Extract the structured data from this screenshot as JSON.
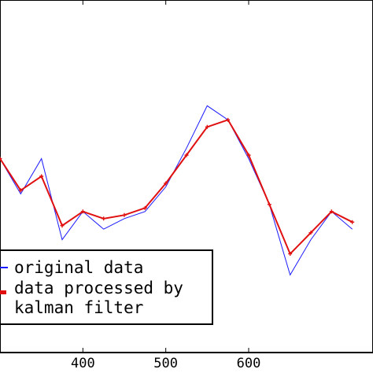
{
  "chart_data": {
    "type": "line",
    "title": "",
    "xlabel": "",
    "ylabel": "",
    "xlim": [
      300,
      750
    ],
    "x_ticks": [
      400,
      500,
      600
    ],
    "grid": false,
    "legend_position": "lower-left",
    "series": [
      {
        "name": "original data",
        "color": "#1a1aff",
        "style": "line",
        "x": [
          300,
          325,
          350,
          375,
          400,
          425,
          450,
          475,
          500,
          525,
          550,
          575,
          600,
          625,
          650,
          675,
          700,
          725
        ],
        "y": [
          0.55,
          0.45,
          0.55,
          0.32,
          0.4,
          0.35,
          0.38,
          0.4,
          0.47,
          0.58,
          0.7,
          0.66,
          0.55,
          0.42,
          0.22,
          0.32,
          0.4,
          0.35
        ]
      },
      {
        "name": "data processed by kalman filter",
        "color": "#e01010",
        "style": "line-plus-markers",
        "x": [
          300,
          325,
          350,
          375,
          400,
          425,
          450,
          475,
          500,
          525,
          550,
          575,
          600,
          625,
          650,
          675,
          700,
          725
        ],
        "y": [
          0.55,
          0.46,
          0.5,
          0.36,
          0.4,
          0.38,
          0.39,
          0.41,
          0.48,
          0.56,
          0.64,
          0.66,
          0.56,
          0.42,
          0.28,
          0.34,
          0.4,
          0.37
        ]
      }
    ]
  },
  "legend": {
    "items": [
      {
        "label": "original data"
      },
      {
        "label": "data processed by",
        "label_line2": "kalman filter"
      }
    ]
  }
}
